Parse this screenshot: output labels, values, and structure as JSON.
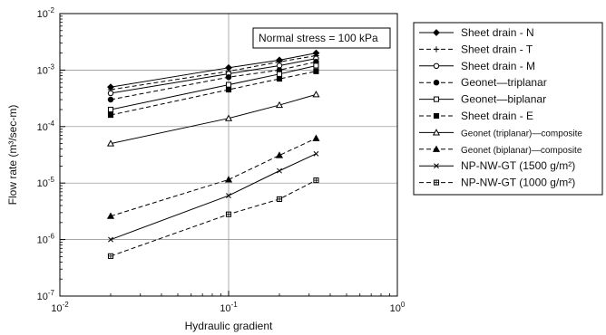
{
  "chart_data": {
    "type": "line",
    "xlabel": "Hydraulic gradient",
    "ylabel": "Flow rate (m³/sec-m)",
    "xscale": "log",
    "yscale": "log",
    "xlim": [
      0.01,
      1
    ],
    "ylim": [
      1e-07,
      0.01
    ],
    "grid": true,
    "legend_position": "right, outside",
    "x_ticks": [
      {
        "value": 0.01,
        "base": "10",
        "exp": "-2"
      },
      {
        "value": 0.1,
        "base": "10",
        "exp": "-1"
      },
      {
        "value": 1,
        "base": "10",
        "exp": "0"
      }
    ],
    "y_ticks": [
      {
        "value": 1e-07,
        "base": "10",
        "exp": "-7"
      },
      {
        "value": 1e-06,
        "base": "10",
        "exp": "-6"
      },
      {
        "value": 1e-05,
        "base": "10",
        "exp": "-5"
      },
      {
        "value": 0.0001,
        "base": "10",
        "exp": "-4"
      },
      {
        "value": 0.001,
        "base": "10",
        "exp": "-3"
      },
      {
        "value": 0.01,
        "base": "10",
        "exp": "-2"
      }
    ],
    "annotation": "Normal stress = 100 kPa",
    "series": [
      {
        "name": "Sheet drain - N",
        "marker": "diamond-filled",
        "dash": "solid",
        "x": [
          0.02,
          0.1,
          0.2,
          0.33
        ],
        "y": [
          0.0005,
          0.0011,
          0.0015,
          0.002
        ]
      },
      {
        "name": "Sheet drain - T",
        "marker": "plus",
        "dash": "dashed",
        "x": [
          0.02,
          0.1,
          0.2,
          0.33
        ],
        "y": [
          0.00045,
          0.00095,
          0.0014,
          0.0018
        ]
      },
      {
        "name": "Sheet drain - M",
        "marker": "circle-open",
        "dash": "solid",
        "x": [
          0.02,
          0.1,
          0.2,
          0.33
        ],
        "y": [
          0.00039,
          0.00086,
          0.0012,
          0.0016
        ]
      },
      {
        "name": "Geonet—triplanar",
        "marker": "circle-filled",
        "dash": "dashed",
        "x": [
          0.02,
          0.1,
          0.2,
          0.33
        ],
        "y": [
          0.0003,
          0.00075,
          0.001,
          0.0014
        ]
      },
      {
        "name": "Geonet—biplanar",
        "marker": "square-open",
        "dash": "solid",
        "x": [
          0.02,
          0.1,
          0.2,
          0.33
        ],
        "y": [
          0.0002,
          0.00055,
          0.00085,
          0.0012
        ]
      },
      {
        "name": "Sheet drain - E",
        "marker": "square-filled",
        "dash": "dashed",
        "x": [
          0.02,
          0.1,
          0.2,
          0.33
        ],
        "y": [
          0.00016,
          0.00045,
          0.0007,
          0.00095
        ]
      },
      {
        "name": "Geonet (triplanar)—composite",
        "marker": "triangle-open",
        "dash": "solid",
        "x": [
          0.02,
          0.1,
          0.2,
          0.33
        ],
        "y": [
          5e-05,
          0.00014,
          0.00024,
          0.00037
        ]
      },
      {
        "name": "Geonet (biplanar)—composite",
        "marker": "triangle-filled",
        "dash": "dashed",
        "x": [
          0.02,
          0.1,
          0.2,
          0.33
        ],
        "y": [
          2.6e-06,
          1.15e-05,
          3.1e-05,
          6.2e-05
        ]
      },
      {
        "name": "NP-NW-GT (1500 g/m²)",
        "marker": "x",
        "dash": "solid",
        "x": [
          0.02,
          0.1,
          0.2,
          0.33
        ],
        "y": [
          1e-06,
          6e-06,
          1.65e-05,
          3.3e-05
        ]
      },
      {
        "name": "NP-NW-GT (1000 g/m²)",
        "marker": "square-crossed",
        "dash": "dashed",
        "x": [
          0.02,
          0.1,
          0.2,
          0.33
        ],
        "y": [
          5.1e-07,
          2.8e-06,
          5.2e-06,
          1.12e-05
        ]
      }
    ]
  }
}
